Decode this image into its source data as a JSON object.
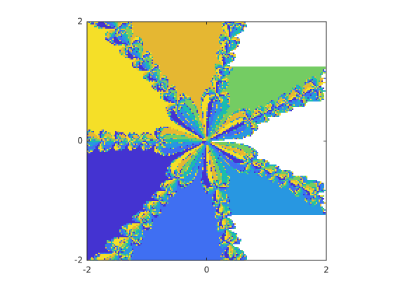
{
  "chart_data": {
    "type": "image",
    "xlim": [
      -2,
      2
    ],
    "ylim": [
      -2,
      2
    ],
    "xticks": [
      -2,
      0,
      2
    ],
    "yticks": [
      -2,
      0,
      2
    ],
    "colors": [
      "#1bbcae",
      "#74cc63",
      "#e5b732",
      "#f5df28",
      "#4433d1",
      "#3f6ff2",
      "#2897e1"
    ]
  }
}
